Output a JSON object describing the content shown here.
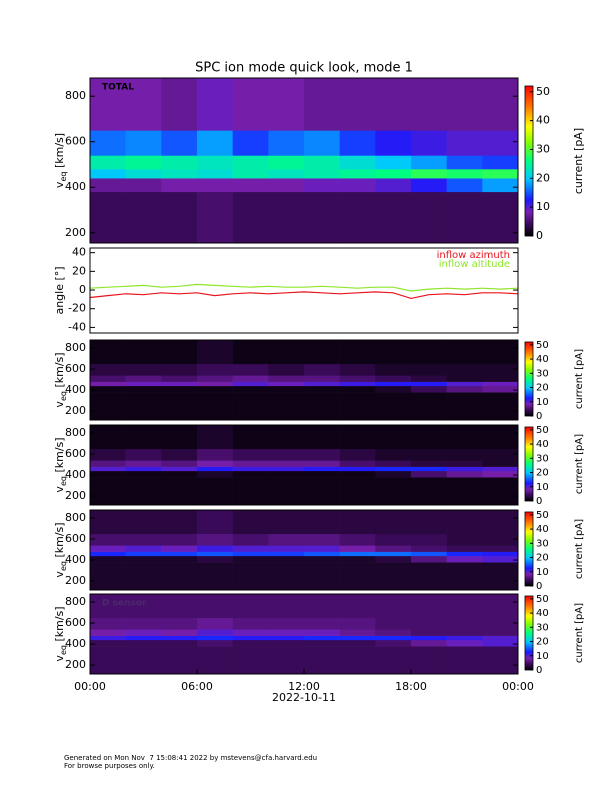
{
  "chart_data": [
    {
      "type": "heatmap",
      "title": "SPC ion mode quick look, mode 1",
      "panel_label": "TOTAL",
      "ylabel": {
        "main": "v",
        "sub": "eq",
        "unit": " [km/s]"
      },
      "colorbar_label": "current [pA]",
      "xlim": [
        0,
        24
      ],
      "ylim": [
        155,
        880
      ],
      "yticks": [
        200,
        400,
        600,
        800
      ],
      "clim": [
        0,
        52
      ],
      "cticks": [
        0,
        10,
        20,
        30,
        40,
        50
      ],
      "time_bins": [
        0,
        2,
        4,
        6,
        8,
        10,
        12,
        14,
        16,
        18,
        20,
        22,
        24
      ],
      "velocity_bins": [
        155,
        380,
        440,
        480,
        540,
        650,
        880
      ],
      "values": [
        [
          4,
          4,
          4,
          5,
          4,
          4,
          4,
          4,
          4,
          4,
          4,
          4
        ],
        [
          7,
          7,
          8,
          8,
          8,
          8,
          9,
          9,
          10,
          12,
          15,
          18
        ],
        [
          20,
          22,
          23,
          22,
          24,
          23,
          24,
          25,
          26,
          28,
          27,
          28
        ],
        [
          24,
          25,
          24,
          23,
          24,
          25,
          24,
          22,
          20,
          18,
          15,
          14
        ],
        [
          16,
          17,
          15,
          18,
          14,
          16,
          17,
          14,
          12,
          11,
          10,
          10
        ],
        [
          8,
          8,
          7,
          9,
          8,
          8,
          7,
          7,
          7,
          7,
          7,
          7
        ]
      ]
    },
    {
      "type": "line",
      "ylabel": "angle [°]",
      "xlim": [
        0,
        24
      ],
      "ylim": [
        -46,
        45
      ],
      "yticks": [
        -40,
        -20,
        0,
        20,
        40
      ],
      "x": [
        0,
        1,
        2,
        3,
        4,
        5,
        6,
        7,
        8,
        9,
        10,
        11,
        12,
        13,
        14,
        15,
        16,
        17,
        18,
        19,
        20,
        21,
        22,
        23,
        24
      ],
      "series": [
        {
          "name": "inflow azimuth",
          "color": "#e8141e",
          "values": [
            -8,
            -6,
            -4,
            -5,
            -3,
            -4,
            -3,
            -6,
            -4,
            -3,
            -4,
            -3,
            -2,
            -3,
            -4,
            -3,
            -2,
            -3,
            -9,
            -5,
            -4,
            -5,
            -3,
            -3,
            -4
          ]
        },
        {
          "name": "inflow altitude",
          "color": "#8ee62a",
          "values": [
            2,
            3,
            4,
            5,
            3,
            4,
            6,
            5,
            4,
            3,
            4,
            3,
            3,
            4,
            3,
            2,
            3,
            3,
            -1,
            1,
            2,
            1,
            2,
            1,
            2
          ]
        }
      ]
    },
    {
      "type": "heatmap",
      "ylabel": {
        "main": "v",
        "sub": "eq",
        "unit": " [km/s]"
      },
      "colorbar_label": "current [pA]",
      "xlim": [
        0,
        24
      ],
      "ylim": [
        115,
        876
      ],
      "yticks": [
        200,
        400,
        600,
        800
      ],
      "clim": [
        0,
        52
      ],
      "cticks": [
        0,
        10,
        20,
        30,
        40,
        50
      ],
      "time_bins": [
        0,
        2,
        4,
        6,
        8,
        10,
        12,
        14,
        16,
        18,
        20,
        22,
        24
      ],
      "velocity_bins": [
        115,
        380,
        440,
        480,
        540,
        650,
        876
      ],
      "values": [
        [
          1,
          1,
          1,
          1,
          1,
          1,
          1,
          1,
          1,
          1,
          1,
          1
        ],
        [
          1,
          1,
          1,
          1,
          1,
          1,
          1,
          1,
          2,
          4,
          6,
          7
        ],
        [
          8,
          9,
          9,
          8,
          10,
          9,
          10,
          11,
          12,
          12,
          10,
          9
        ],
        [
          5,
          6,
          5,
          6,
          7,
          6,
          6,
          5,
          4,
          3,
          2,
          2
        ],
        [
          3,
          3,
          3,
          4,
          4,
          3,
          4,
          3,
          2,
          2,
          2,
          2
        ],
        [
          1,
          1,
          1,
          2,
          1,
          1,
          1,
          1,
          1,
          1,
          1,
          1
        ]
      ]
    },
    {
      "type": "heatmap",
      "ylabel": {
        "main": "v",
        "sub": "eq",
        "unit": " [km/s]"
      },
      "colorbar_label": "current [pA]",
      "xlim": [
        0,
        24
      ],
      "ylim": [
        115,
        876
      ],
      "yticks": [
        200,
        400,
        600,
        800
      ],
      "clim": [
        0,
        52
      ],
      "cticks": [
        0,
        10,
        20,
        30,
        40,
        50
      ],
      "time_bins": [
        0,
        2,
        4,
        6,
        8,
        10,
        12,
        14,
        16,
        18,
        20,
        22,
        24
      ],
      "velocity_bins": [
        115,
        380,
        440,
        480,
        540,
        650,
        876
      ],
      "values": [
        [
          1,
          1,
          1,
          1,
          1,
          1,
          1,
          1,
          1,
          1,
          1,
          1
        ],
        [
          1,
          1,
          1,
          2,
          1,
          1,
          1,
          1,
          2,
          5,
          7,
          8
        ],
        [
          10,
          11,
          10,
          12,
          11,
          11,
          12,
          12,
          13,
          13,
          11,
          10
        ],
        [
          6,
          7,
          6,
          8,
          7,
          7,
          7,
          5,
          4,
          3,
          3,
          2
        ],
        [
          3,
          4,
          3,
          5,
          4,
          4,
          4,
          3,
          2,
          2,
          2,
          2
        ],
        [
          1,
          1,
          1,
          2,
          1,
          1,
          1,
          1,
          1,
          1,
          1,
          1
        ]
      ]
    },
    {
      "type": "heatmap",
      "ylabel": {
        "main": "v",
        "sub": "eq",
        "unit": " [km/s]"
      },
      "colorbar_label": "current [pA]",
      "xlim": [
        0,
        24
      ],
      "ylim": [
        115,
        876
      ],
      "yticks": [
        200,
        400,
        600,
        800
      ],
      "clim": [
        0,
        52
      ],
      "cticks": [
        0,
        10,
        20,
        30,
        40,
        50
      ],
      "time_bins": [
        0,
        2,
        4,
        6,
        8,
        10,
        12,
        14,
        16,
        18,
        20,
        22,
        24
      ],
      "velocity_bins": [
        115,
        380,
        440,
        480,
        540,
        650,
        876
      ],
      "values": [
        [
          2,
          2,
          2,
          2,
          2,
          2,
          2,
          2,
          2,
          2,
          2,
          2
        ],
        [
          2,
          2,
          2,
          3,
          2,
          2,
          2,
          2,
          3,
          6,
          9,
          10
        ],
        [
          13,
          14,
          14,
          15,
          14,
          14,
          15,
          16,
          16,
          15,
          13,
          12
        ],
        [
          9,
          10,
          9,
          11,
          10,
          10,
          10,
          8,
          6,
          5,
          4,
          4
        ],
        [
          5,
          5,
          5,
          6,
          5,
          6,
          6,
          5,
          4,
          4,
          3,
          3
        ],
        [
          3,
          3,
          3,
          4,
          3,
          3,
          3,
          3,
          3,
          3,
          3,
          3
        ]
      ]
    },
    {
      "type": "heatmap",
      "panel_label": "D sensor",
      "ylabel": {
        "main": "v",
        "sub": "eq",
        "unit": " [km/s]"
      },
      "colorbar_label": "current [pA]",
      "xlim": [
        0,
        24
      ],
      "ylim": [
        115,
        876
      ],
      "yticks": [
        200,
        400,
        600,
        800
      ],
      "clim": [
        0,
        52
      ],
      "cticks": [
        0,
        10,
        20,
        30,
        40,
        50
      ],
      "time_bins": [
        0,
        2,
        4,
        6,
        8,
        10,
        12,
        14,
        16,
        18,
        20,
        22,
        24
      ],
      "velocity_bins": [
        115,
        380,
        440,
        480,
        540,
        650,
        876
      ],
      "xticks": [
        {
          "value": 0,
          "label": "00:00"
        },
        {
          "value": 6,
          "label": "06:00"
        },
        {
          "value": 12,
          "label": "12:00"
        },
        {
          "value": 18,
          "label": "18:00"
        },
        {
          "value": 24,
          "label": "00:00"
        }
      ],
      "xlabel": "2022-10-11",
      "values": [
        [
          4,
          4,
          4,
          4,
          4,
          4,
          4,
          4,
          4,
          4,
          4,
          4
        ],
        [
          4,
          4,
          4,
          5,
          4,
          4,
          4,
          4,
          5,
          7,
          9,
          10
        ],
        [
          11,
          12,
          12,
          13,
          12,
          12,
          13,
          13,
          13,
          12,
          11,
          10
        ],
        [
          8,
          9,
          8,
          10,
          9,
          9,
          9,
          7,
          6,
          5,
          5,
          5
        ],
        [
          6,
          6,
          6,
          7,
          6,
          6,
          6,
          6,
          5,
          5,
          5,
          5
        ],
        [
          5,
          5,
          5,
          5,
          5,
          5,
          5,
          5,
          5,
          5,
          5,
          5
        ]
      ]
    }
  ],
  "footer": [
    "Generated on Mon Nov  7 15:08:41 2022 by mstevens@cfa.harvard.edu",
    "For browse purposes only."
  ]
}
